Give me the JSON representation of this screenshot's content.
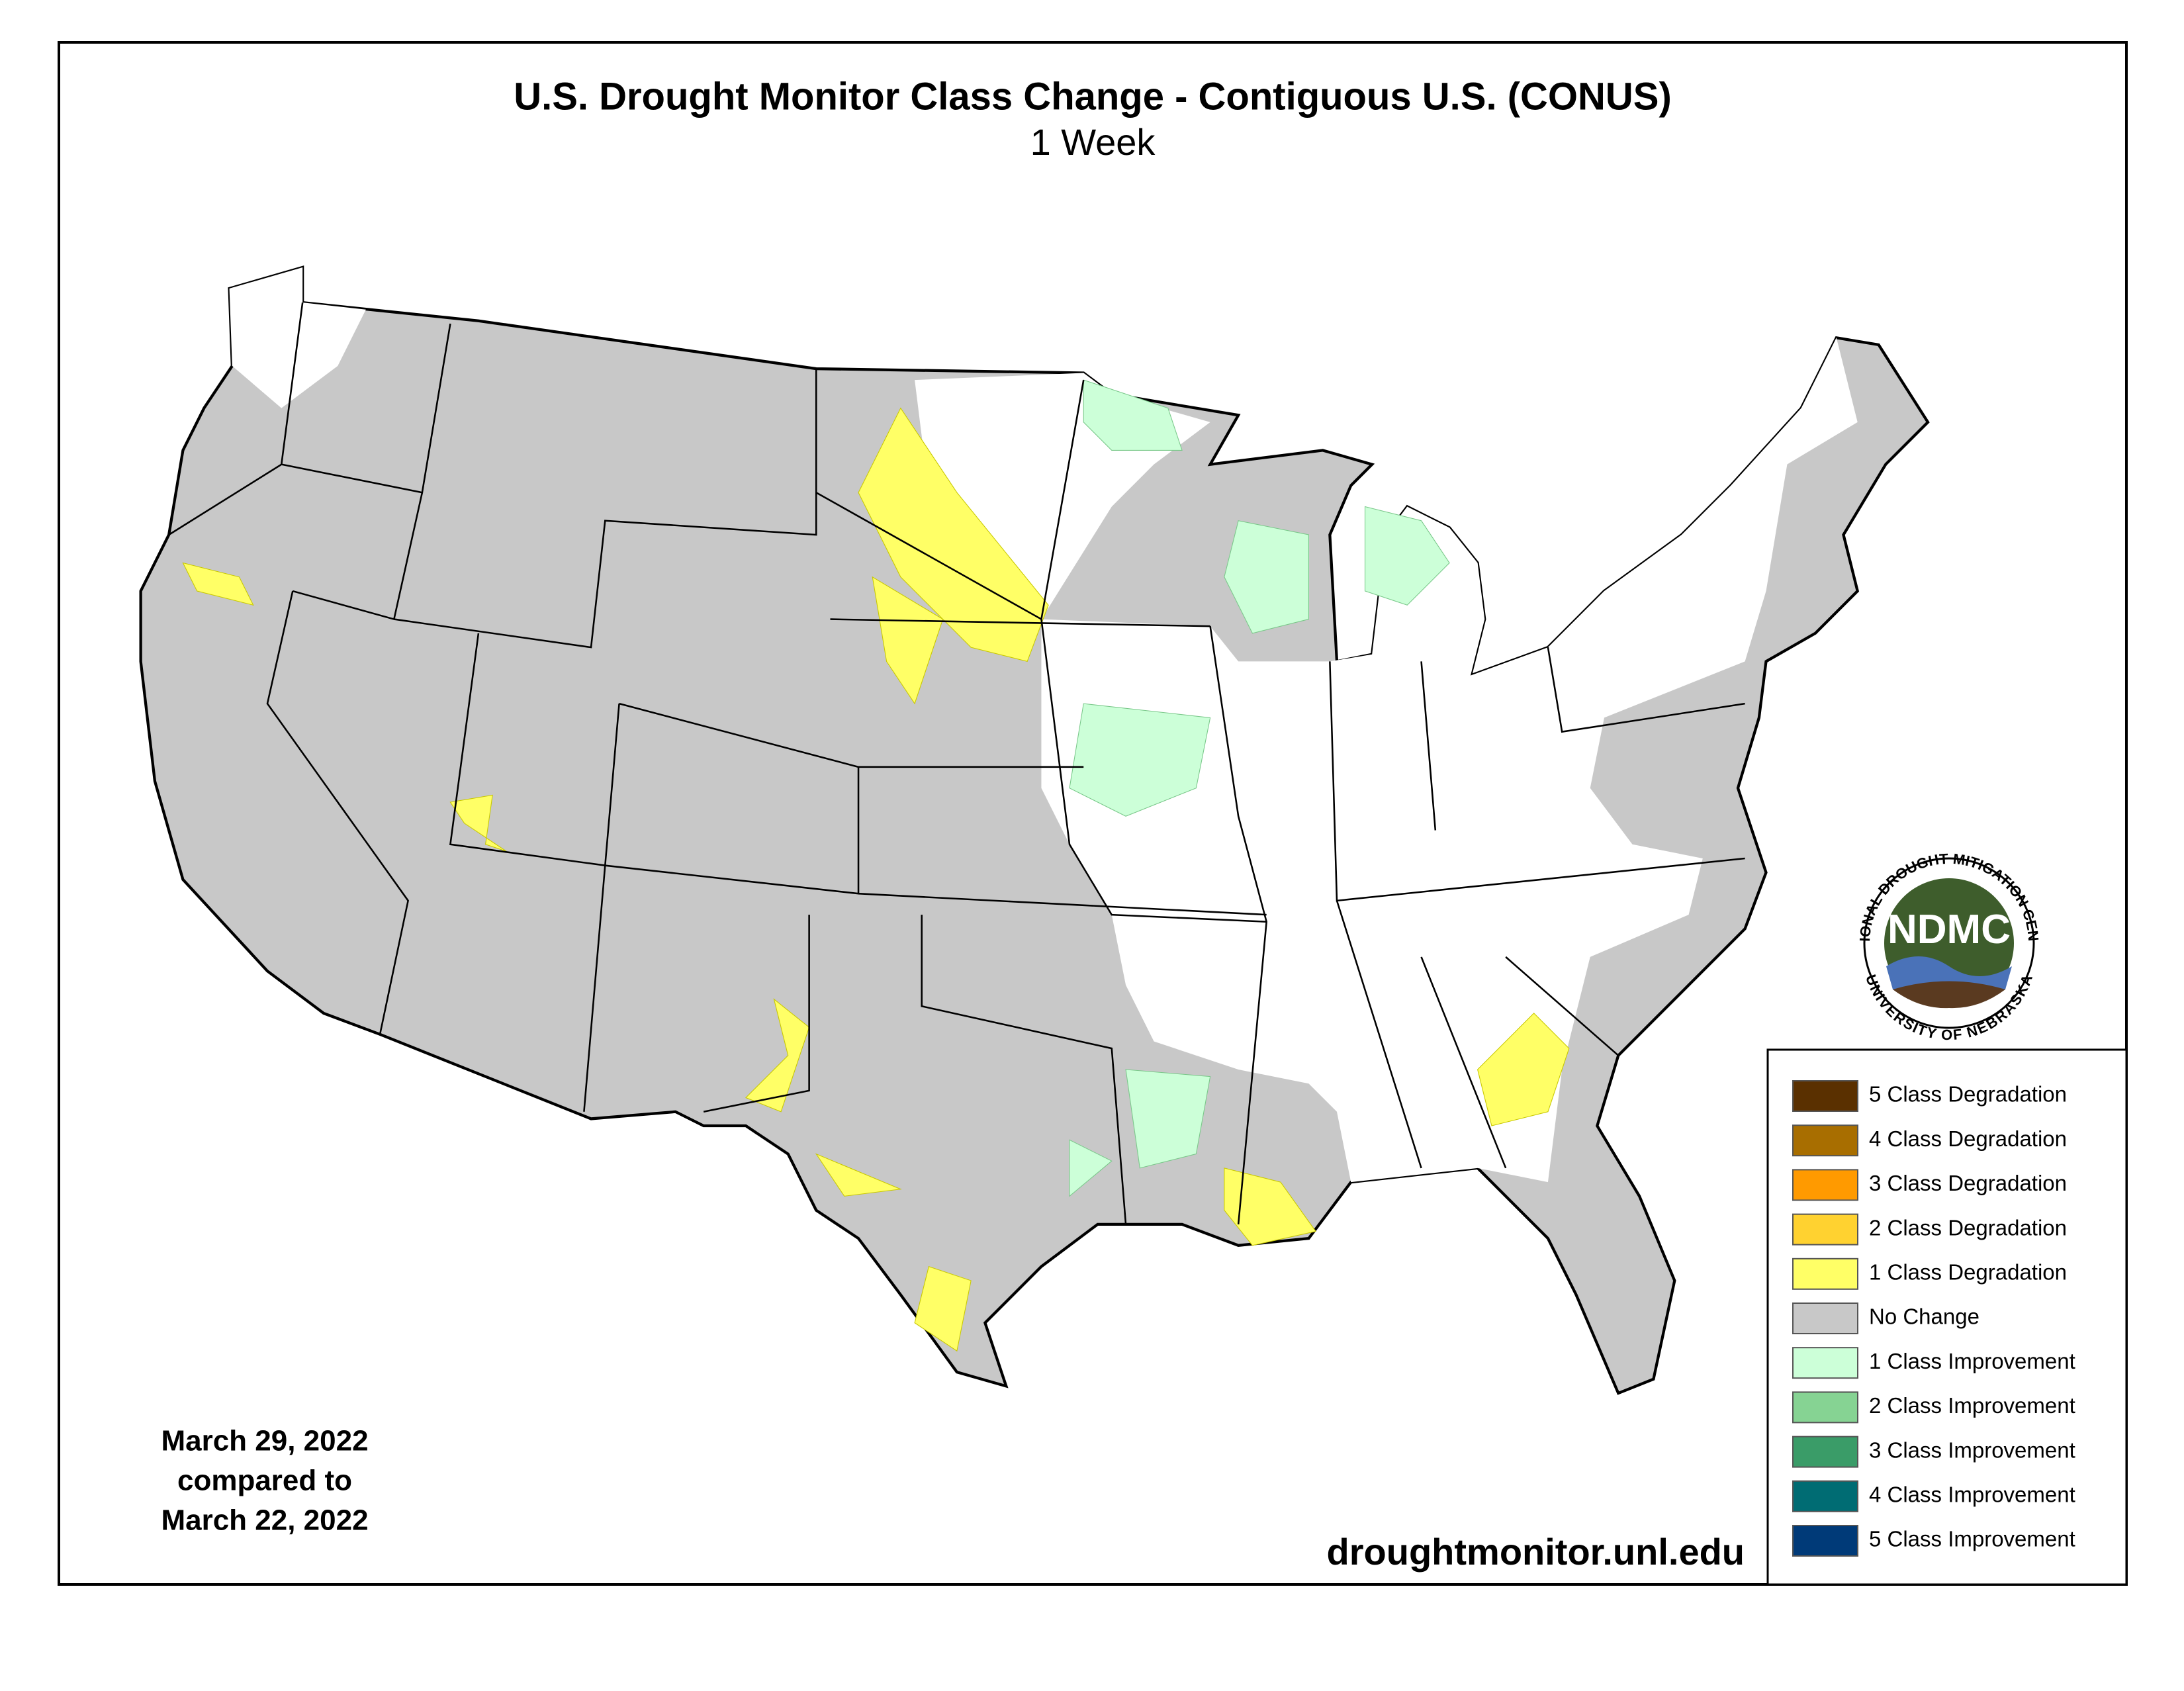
{
  "header": {
    "title": "U.S. Drought Monitor Class Change - Contiguous U.S. (CONUS)",
    "subtitle": "1 Week"
  },
  "comparison": {
    "lines": [
      "March 29, 2022",
      "compared to",
      "March 22, 2022"
    ]
  },
  "url": "droughtmonitor.unl.edu",
  "legend": {
    "items": [
      {
        "label": "5 Class Degradation",
        "color": "#5a3000"
      },
      {
        "label": "4 Class Degradation",
        "color": "#a86e00"
      },
      {
        "label": "3 Class Degradation",
        "color": "#ff9a00"
      },
      {
        "label": "2 Class Degradation",
        "color": "#ffd230"
      },
      {
        "label": "1 Class Degradation",
        "color": "#ffff66"
      },
      {
        "label": "No Change",
        "color": "#c8c8c8"
      },
      {
        "label": "1 Class Improvement",
        "color": "#ccffd8"
      },
      {
        "label": "2 Class Improvement",
        "color": "#86d393"
      },
      {
        "label": "3 Class Improvement",
        "color": "#3a9c68"
      },
      {
        "label": "4 Class Improvement",
        "color": "#006c73"
      },
      {
        "label": "5 Class Improvement",
        "color": "#003a78"
      }
    ]
  },
  "logo": {
    "arc_top": "NATIONAL DROUGHT MITIGATION CENTER",
    "acronym": "NDMC",
    "arc_bottom": "UNIVERSITY OF NEBRASKA"
  }
}
